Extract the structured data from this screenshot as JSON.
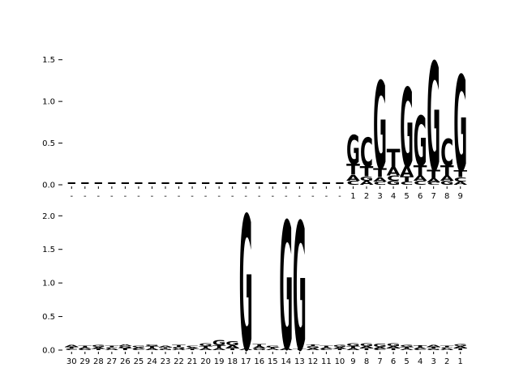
{
  "figure": {
    "background": "#ffffff"
  },
  "letter_colors": {
    "A": "#008000",
    "C": "#0000cc",
    "G": "#f9a008",
    "T": "#cc0000",
    "-": "#000000"
  },
  "chart_data": [
    {
      "type": "sequence_logo",
      "title": "",
      "xlabel": "",
      "ylabel": "",
      "ylim": [
        0,
        1.75
      ],
      "yticks": [
        {
          "v": 0.0,
          "t": "0.0"
        },
        {
          "v": 0.5,
          "t": "0.5"
        },
        {
          "v": 1.0,
          "t": "1.0"
        },
        {
          "v": 1.5,
          "t": "1.5"
        }
      ],
      "xticklabels": [
        "-",
        "-",
        "-",
        "-",
        "-",
        "-",
        "-",
        "-",
        "-",
        "-",
        "-",
        "-",
        "-",
        "-",
        "-",
        "-",
        "-",
        "-",
        "-",
        "-",
        "-",
        "1",
        "2",
        "3",
        "4",
        "5",
        "6",
        "7",
        "8",
        "9"
      ],
      "stacks": [
        [
          [
            "-",
            0.03
          ]
        ],
        [
          [
            "-",
            0.03
          ]
        ],
        [
          [
            "-",
            0.03
          ]
        ],
        [
          [
            "-",
            0.03
          ]
        ],
        [
          [
            "-",
            0.03
          ]
        ],
        [
          [
            "-",
            0.03
          ]
        ],
        [
          [
            "-",
            0.03
          ]
        ],
        [
          [
            "-",
            0.03
          ]
        ],
        [
          [
            "-",
            0.03
          ]
        ],
        [
          [
            "-",
            0.03
          ]
        ],
        [
          [
            "-",
            0.03
          ]
        ],
        [
          [
            "-",
            0.03
          ]
        ],
        [
          [
            "-",
            0.03
          ]
        ],
        [
          [
            "-",
            0.03
          ]
        ],
        [
          [
            "-",
            0.03
          ]
        ],
        [
          [
            "-",
            0.03
          ]
        ],
        [
          [
            "-",
            0.03
          ]
        ],
        [
          [
            "-",
            0.03
          ]
        ],
        [
          [
            "-",
            0.03
          ]
        ],
        [
          [
            "-",
            0.03
          ]
        ],
        [
          [
            "-",
            0.03
          ]
        ],
        [
          [
            "C",
            0.05
          ],
          [
            "A",
            0.07
          ],
          [
            "T",
            0.13
          ],
          [
            "G",
            0.35
          ]
        ],
        [
          [
            "A",
            0.05
          ],
          [
            "G",
            0.05
          ],
          [
            "T",
            0.12
          ],
          [
            "C",
            0.35
          ]
        ],
        [
          [
            "C",
            0.04
          ],
          [
            "A",
            0.05
          ],
          [
            "T",
            0.11
          ],
          [
            "G",
            1.05
          ]
        ],
        [
          [
            "G",
            0.05
          ],
          [
            "C",
            0.06
          ],
          [
            "A",
            0.1
          ],
          [
            "T",
            0.22
          ]
        ],
        [
          [
            "C",
            0.04
          ],
          [
            "T",
            0.06
          ],
          [
            "A",
            0.12
          ],
          [
            "G",
            0.95
          ]
        ],
        [
          [
            "C",
            0.05
          ],
          [
            "A",
            0.06
          ],
          [
            "T",
            0.12
          ],
          [
            "G",
            0.6
          ]
        ],
        [
          [
            "C",
            0.03
          ],
          [
            "A",
            0.05
          ],
          [
            "T",
            0.1
          ],
          [
            "G",
            1.3
          ]
        ],
        [
          [
            "G",
            0.05
          ],
          [
            "A",
            0.06
          ],
          [
            "T",
            0.12
          ],
          [
            "C",
            0.32
          ]
        ],
        [
          [
            "A",
            0.04
          ],
          [
            "C",
            0.05
          ],
          [
            "T",
            0.08
          ],
          [
            "G",
            1.15
          ]
        ]
      ]
    },
    {
      "type": "sequence_logo",
      "title": "",
      "xlabel": "",
      "ylabel": "",
      "ylim": [
        0,
        2.1
      ],
      "yticks": [
        {
          "v": 0.0,
          "t": "0.0"
        },
        {
          "v": 0.5,
          "t": "0.5"
        },
        {
          "v": 1.0,
          "t": "1.0"
        },
        {
          "v": 1.5,
          "t": "1.5"
        },
        {
          "v": 2.0,
          "t": "2.0"
        }
      ],
      "xticklabels": [
        "30",
        "29",
        "28",
        "27",
        "26",
        "25",
        "24",
        "23",
        "22",
        "21",
        "20",
        "19",
        "18",
        "17",
        "16",
        "15",
        "14",
        "13",
        "12",
        "11",
        "10",
        "9",
        "8",
        "7",
        "6",
        "5",
        "4",
        "3",
        "2",
        "1"
      ],
      "stacks": [
        [
          [
            "C",
            0.02
          ],
          [
            "T",
            0.03
          ],
          [
            "A",
            0.03
          ]
        ],
        [
          [
            "G",
            0.02
          ],
          [
            "A",
            0.02
          ],
          [
            "T",
            0.02
          ]
        ],
        [
          [
            "T",
            0.02
          ],
          [
            "A",
            0.03
          ],
          [
            "G",
            0.03
          ]
        ],
        [
          [
            "A",
            0.02
          ],
          [
            "C",
            0.02
          ],
          [
            "T",
            0.02
          ]
        ],
        [
          [
            "T",
            0.03
          ],
          [
            "G",
            0.03
          ],
          [
            "A",
            0.02
          ]
        ],
        [
          [
            "C",
            0.02
          ],
          [
            "A",
            0.02
          ],
          [
            "G",
            0.02
          ]
        ],
        [
          [
            "A",
            0.03
          ],
          [
            "T",
            0.03
          ],
          [
            "G",
            0.02
          ]
        ],
        [
          [
            "G",
            0.02
          ],
          [
            "T",
            0.02
          ],
          [
            "A",
            0.02
          ]
        ],
        [
          [
            "A",
            0.02
          ],
          [
            "G",
            0.03
          ],
          [
            "T",
            0.03
          ]
        ],
        [
          [
            "T",
            0.02
          ],
          [
            "A",
            0.02
          ],
          [
            "C",
            0.02
          ]
        ],
        [
          [
            "A",
            0.03
          ],
          [
            "T",
            0.03
          ],
          [
            "G",
            0.04
          ]
        ],
        [
          [
            "A",
            0.03
          ],
          [
            "T",
            0.04
          ],
          [
            "G",
            0.08
          ]
        ],
        [
          [
            "T",
            0.03
          ],
          [
            "A",
            0.04
          ],
          [
            "G",
            0.06
          ]
        ],
        [
          [
            "A",
            0.02
          ],
          [
            "G",
            2.0
          ]
        ],
        [
          [
            "G",
            0.03
          ],
          [
            "A",
            0.03
          ],
          [
            "T",
            0.03
          ]
        ],
        [
          [
            "A",
            0.02
          ],
          [
            "T",
            0.02
          ],
          [
            "G",
            0.02
          ]
        ],
        [
          [
            "A",
            0.03
          ],
          [
            "G",
            1.9
          ]
        ],
        [
          [
            "T",
            0.02
          ],
          [
            "G",
            1.9
          ]
        ],
        [
          [
            "A",
            0.03
          ],
          [
            "G",
            0.03
          ],
          [
            "T",
            0.02
          ]
        ],
        [
          [
            "C",
            0.02
          ],
          [
            "A",
            0.02
          ],
          [
            "T",
            0.02
          ]
        ],
        [
          [
            "T",
            0.02
          ],
          [
            "A",
            0.03
          ],
          [
            "G",
            0.03
          ]
        ],
        [
          [
            "A",
            0.03
          ],
          [
            "T",
            0.03
          ],
          [
            "G",
            0.04
          ]
        ],
        [
          [
            "T",
            0.03
          ],
          [
            "A",
            0.03
          ],
          [
            "G",
            0.04
          ]
        ],
        [
          [
            "C",
            0.02
          ],
          [
            "A",
            0.03
          ],
          [
            "G",
            0.05
          ]
        ],
        [
          [
            "T",
            0.03
          ],
          [
            "A",
            0.03
          ],
          [
            "G",
            0.04
          ]
        ],
        [
          [
            "A",
            0.02
          ],
          [
            "T",
            0.03
          ],
          [
            "G",
            0.03
          ]
        ],
        [
          [
            "C",
            0.02
          ],
          [
            "A",
            0.02
          ],
          [
            "T",
            0.03
          ]
        ],
        [
          [
            "G",
            0.02
          ],
          [
            "T",
            0.03
          ],
          [
            "A",
            0.03
          ]
        ],
        [
          [
            "A",
            0.02
          ],
          [
            "C",
            0.02
          ],
          [
            "T",
            0.02
          ]
        ],
        [
          [
            "T",
            0.03
          ],
          [
            "A",
            0.03
          ],
          [
            "G",
            0.03
          ]
        ]
      ]
    }
  ]
}
